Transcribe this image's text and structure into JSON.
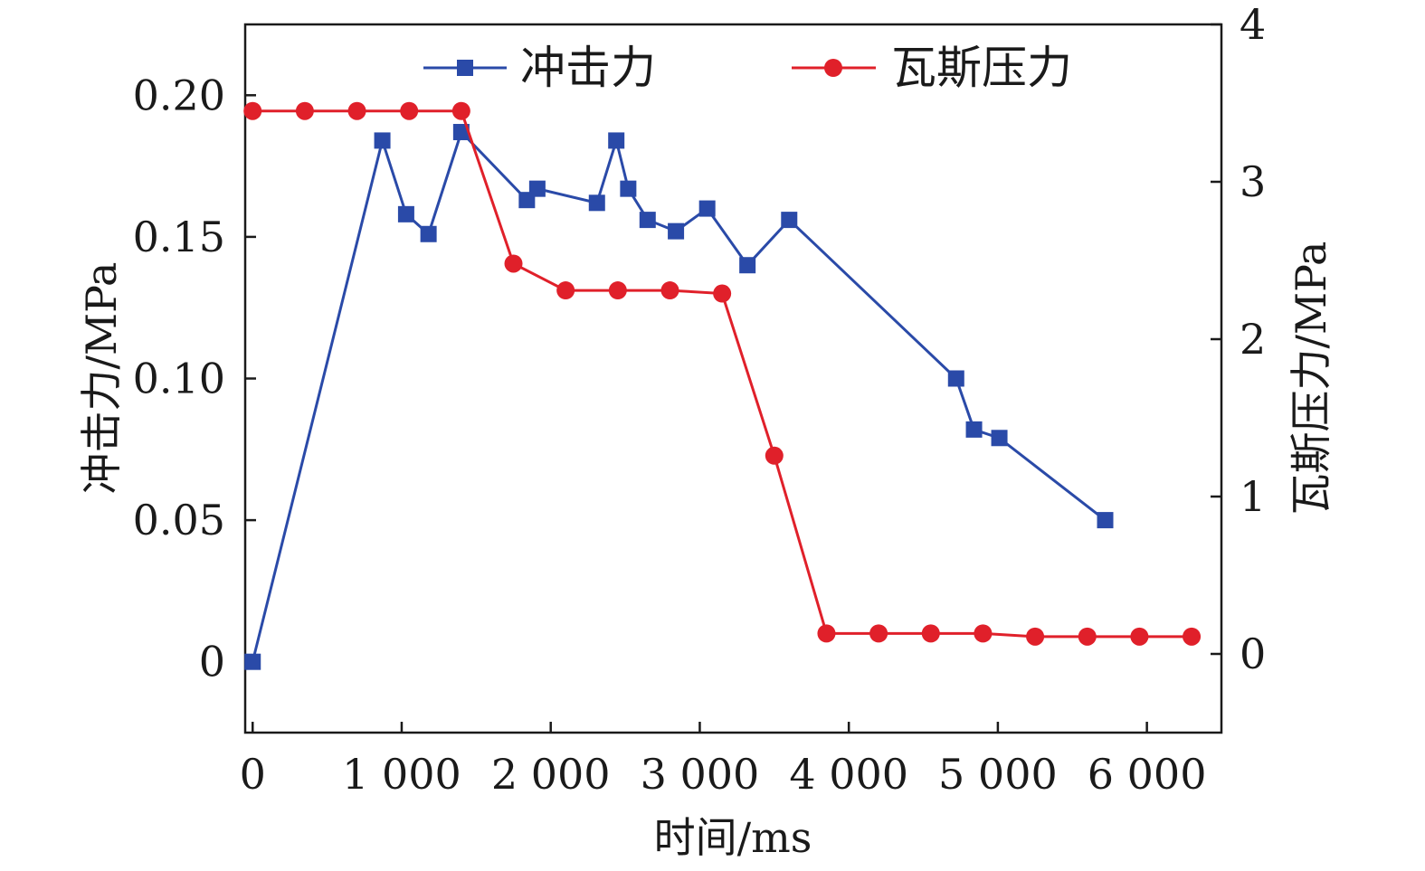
{
  "chart_data": {
    "type": "line",
    "xlabel": "时间/ms",
    "ylabel": "冲击力/MPa",
    "y2label": "瓦斯压力/MPa",
    "xlim": [
      -50,
      6500
    ],
    "ylim": [
      -0.025,
      0.225
    ],
    "y2lim": [
      -0.5,
      4
    ],
    "x_ticks": [
      0,
      1000,
      2000,
      3000,
      4000,
      5000,
      6000
    ],
    "x_tick_labels": [
      "0",
      "1 000",
      "2 000",
      "3 000",
      "4 000",
      "5 000",
      "6 000"
    ],
    "y_ticks": [
      0,
      0.05,
      0.1,
      0.15,
      0.2
    ],
    "y_tick_labels": [
      "0",
      "0.05",
      "0.10",
      "0.15",
      "0.20"
    ],
    "y2_ticks": [
      0,
      1,
      2,
      3,
      4
    ],
    "y2_tick_labels": [
      "0",
      "1",
      "2",
      "3",
      "4"
    ],
    "legend_position": "top",
    "grid": false,
    "series": [
      {
        "name": "冲击力",
        "axis": "left",
        "marker": "square",
        "color": "#2a4aa8",
        "x": [
          0,
          870,
          1030,
          1180,
          1400,
          1840,
          1910,
          2310,
          2440,
          2520,
          2650,
          2840,
          3050,
          3320,
          3600,
          4720,
          4840,
          5010,
          5720
        ],
        "y": [
          0,
          0.184,
          0.158,
          0.151,
          0.187,
          0.163,
          0.167,
          0.162,
          0.184,
          0.167,
          0.156,
          0.152,
          0.16,
          0.14,
          0.156,
          0.1,
          0.082,
          0.079,
          0.05
        ]
      },
      {
        "name": "瓦斯压力",
        "axis": "right",
        "marker": "circle",
        "color": "#e0202a",
        "x": [
          0,
          350,
          700,
          1050,
          1400,
          1750,
          2100,
          2450,
          2800,
          3150,
          3500,
          3850,
          4200,
          4550,
          4900,
          5250,
          5600,
          5950,
          6300
        ],
        "y": [
          3.45,
          3.45,
          3.45,
          3.45,
          3.45,
          2.48,
          2.31,
          2.31,
          2.31,
          2.29,
          1.26,
          0.13,
          0.13,
          0.13,
          0.13,
          0.11,
          0.11,
          0.11,
          0.11
        ]
      }
    ]
  }
}
